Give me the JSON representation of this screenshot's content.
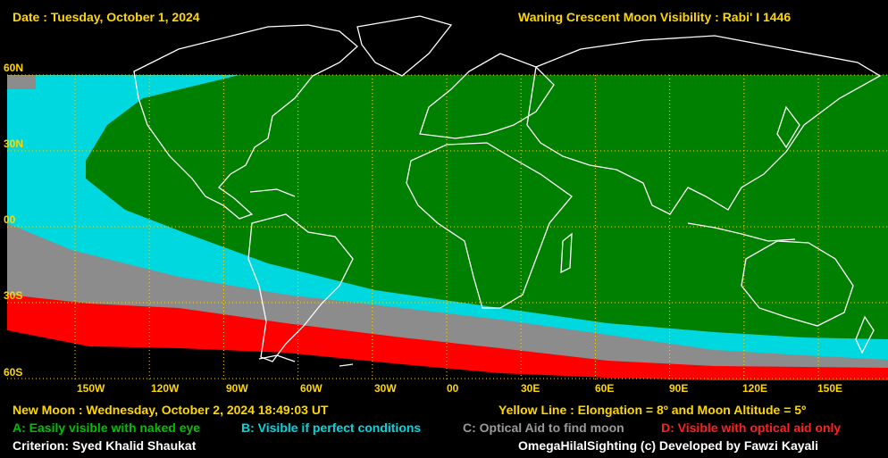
{
  "header": {
    "date_text": "Date : Tuesday, October 1, 2024",
    "title_text": "Waning Crescent Moon Visibility : Rabi' I 1446"
  },
  "map": {
    "lat_labels": [
      "60N",
      "30N",
      "00",
      "30S",
      "60S"
    ],
    "lon_labels": [
      "150W",
      "120W",
      "90W",
      "60W",
      "30W",
      "00",
      "30E",
      "60E",
      "90E",
      "120E",
      "150E"
    ],
    "zone_colors": {
      "A": "#008000",
      "B": "#00d8e0",
      "C": "#8c8c8c",
      "D": "#ff0000"
    },
    "grid_color": "#ffd700",
    "coastline_color": "#ffffff"
  },
  "footer": {
    "new_moon_text": "New Moon : Wednesday, October 2, 2024  18:49:03  UT",
    "yellow_line_text": "Yellow Line : Elongation = 8º  and Moon Altitude = 5º",
    "legend": {
      "a_text": "A: Easily visible with naked eye",
      "b_text": "B: Visible if perfect conditions",
      "c_text": "C: Optical Aid to find moon",
      "d_text": "D: Visible with optical aid only"
    },
    "criterion_text": "Criterion: Syed Khalid Shaukat",
    "credit_text": "OmegaHilalSighting  (c)  Developed by Fawzi Kayali"
  }
}
